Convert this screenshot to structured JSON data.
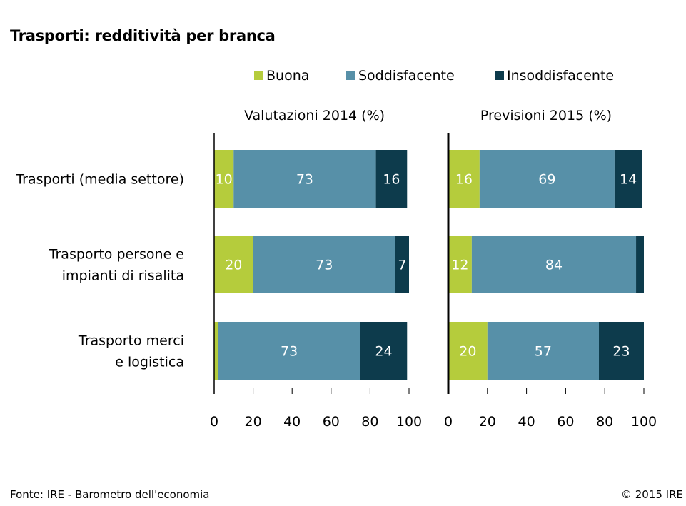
{
  "title": "Trasporti: redditività per branca",
  "footer": {
    "source": "Fonte: IRE - Barometro dell'economia",
    "copyright": "© 2015 IRE"
  },
  "colors": {
    "Buona": "#b5cc3c",
    "Soddisfacente": "#5790a8",
    "Insoddisfacente": "#0d3b4c"
  },
  "chart_data": [
    {
      "type": "bar",
      "orientation": "horizontal",
      "stacked": true,
      "title": "Valutazioni 2014 (%)",
      "categories": [
        "Trasporti (media settore)",
        "Trasporto persone e impianti di risalita",
        "Trasporto merci e logistica"
      ],
      "series": [
        {
          "name": "Buona",
          "values": [
            10,
            20,
            2
          ]
        },
        {
          "name": "Soddisfacente",
          "values": [
            73,
            73,
            73
          ]
        },
        {
          "name": "Insoddisfacente",
          "values": [
            16,
            7,
            24
          ]
        }
      ],
      "data_labels": [
        [
          "10",
          "73",
          "16"
        ],
        [
          "20",
          "73",
          "7"
        ],
        [
          "",
          "73",
          "24"
        ]
      ],
      "xlim": [
        0,
        100
      ],
      "xticks": [
        0,
        20,
        40,
        60,
        80,
        100
      ],
      "legend": "top"
    },
    {
      "type": "bar",
      "orientation": "horizontal",
      "stacked": true,
      "title": "Previsioni 2015 (%)",
      "categories": [
        "Trasporti (media settore)",
        "Trasporto persone e impianti di risalita",
        "Trasporto merci e logistica"
      ],
      "series": [
        {
          "name": "Buona",
          "values": [
            16,
            12,
            20
          ]
        },
        {
          "name": "Soddisfacente",
          "values": [
            69,
            84,
            57
          ]
        },
        {
          "name": "Insoddisfacente",
          "values": [
            14,
            4,
            23
          ]
        }
      ],
      "data_labels": [
        [
          "16",
          "69",
          "14"
        ],
        [
          "12",
          "84",
          ""
        ],
        [
          "20",
          "57",
          "23"
        ]
      ],
      "xlim": [
        0,
        100
      ],
      "xticks": [
        0,
        20,
        40,
        60,
        80,
        100
      ],
      "legend": "top"
    }
  ],
  "category_labels": [
    [
      "Trasporti (media settore)"
    ],
    [
      "Trasporto persone e",
      "impianti di risalita"
    ],
    [
      "Trasporto merci",
      "e logistica"
    ]
  ]
}
